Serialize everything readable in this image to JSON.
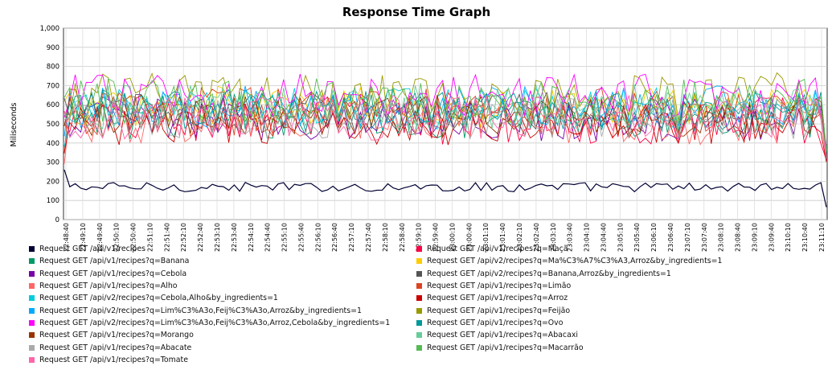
{
  "chart_data": {
    "type": "line",
    "title": "Response Time Graph",
    "ylabel": "Miliseconds",
    "xlabel": "",
    "ylim": [
      0,
      1000
    ],
    "yticks": [
      "0",
      "100",
      "200",
      "300",
      "400",
      "500",
      "600",
      "700",
      "800",
      "900",
      "1,000"
    ],
    "xticks": [
      "22:48:40",
      "22:49:10",
      "22:49:40",
      "22:50:10",
      "22:50:40",
      "22:51:10",
      "22:51:40",
      "22:52:10",
      "22:52:40",
      "22:53:10",
      "22:53:40",
      "22:54:10",
      "22:54:40",
      "22:55:10",
      "22:55:40",
      "22:56:10",
      "22:56:40",
      "22:57:10",
      "22:57:40",
      "22:58:10",
      "22:58:40",
      "22:59:10",
      "22:59:40",
      "23:00:10",
      "23:00:40",
      "23:01:10",
      "23:01:40",
      "23:02:10",
      "23:02:40",
      "23:03:10",
      "23:03:40",
      "23:04:10",
      "23:04:40",
      "23:05:10",
      "23:05:40",
      "23:06:10",
      "23:06:40",
      "23:07:10",
      "23:07:40",
      "23:08:10",
      "23:08:40",
      "23:09:10",
      "23:09:40",
      "23:10:10",
      "23:10:40",
      "23:11:10"
    ],
    "point_count": 140,
    "grid": true,
    "legend_position": "bottom",
    "series": [
      {
        "name": "Request GET /api/v1/recipes",
        "color": "#000033",
        "base": 170,
        "amp": 25
      },
      {
        "name": "Request GET /api/v1/recipes?q=Maçã",
        "color": "#ff0044",
        "base": 520,
        "amp": 130
      },
      {
        "name": "Request GET /api/v1/recipes?q=Banana",
        "color": "#009966",
        "base": 540,
        "amp": 120
      },
      {
        "name": "Request GET /api/v2/recipes?q=Ma%C3%A7%C3%A3,Arroz&by_ingredients=1",
        "color": "#ffcc00",
        "base": 590,
        "amp": 110
      },
      {
        "name": "Request GET /api/v1/recipes?q=Cebola",
        "color": "#7700aa",
        "base": 520,
        "amp": 110
      },
      {
        "name": "Request GET /api/v2/recipes?q=Banana,Arroz&by_ingredients=1",
        "color": "#555555",
        "base": 560,
        "amp": 110
      },
      {
        "name": "Request GET /api/v1/recipes?q=Alho",
        "color": "#ff6666",
        "base": 510,
        "amp": 120
      },
      {
        "name": "Request GET /api/v1/recipes?q=Limão",
        "color": "#dd4422",
        "base": 560,
        "amp": 130
      },
      {
        "name": "Request GET /api/v2/recipes?q=Cebola,Alho&by_ingredients=1",
        "color": "#00ccdd",
        "base": 580,
        "amp": 110
      },
      {
        "name": "Request GET /api/v1/recipes?q=Arroz",
        "color": "#cc0000",
        "base": 500,
        "amp": 110
      },
      {
        "name": "Request GET /api/v2/recipes?q=Lim%C3%A3o,Feij%C3%A3o,Arroz&by_ingredients=1",
        "color": "#00aaff",
        "base": 590,
        "amp": 110
      },
      {
        "name": "Request GET /api/v1/recipes?q=Feijão",
        "color": "#999900",
        "base": 640,
        "amp": 130
      },
      {
        "name": "Request GET /api/v2/recipes?q=Lim%C3%A3o,Feij%C3%A3o,Arroz,Cebola&by_ingredients=1",
        "color": "#ff00ff",
        "base": 650,
        "amp": 110
      },
      {
        "name": "Request GET /api/v1/recipes?q=Ovo",
        "color": "#009999",
        "base": 570,
        "amp": 110
      },
      {
        "name": "Request GET /api/v1/recipes?q=Morango",
        "color": "#993300",
        "base": 540,
        "amp": 110
      },
      {
        "name": "Request GET /api/v1/recipes?q=Abacaxi",
        "color": "#66cc99",
        "base": 590,
        "amp": 120
      },
      {
        "name": "Request GET /api/v1/recipes?q=Abacate",
        "color": "#aaaaaa",
        "base": 530,
        "amp": 110
      },
      {
        "name": "Request GET /api/v1/recipes?q=Macarrão",
        "color": "#55bb55",
        "base": 620,
        "amp": 120
      },
      {
        "name": "Request GET /api/v1/recipes?q=Tomate",
        "color": "#ff66aa",
        "base": 530,
        "amp": 120
      }
    ]
  }
}
